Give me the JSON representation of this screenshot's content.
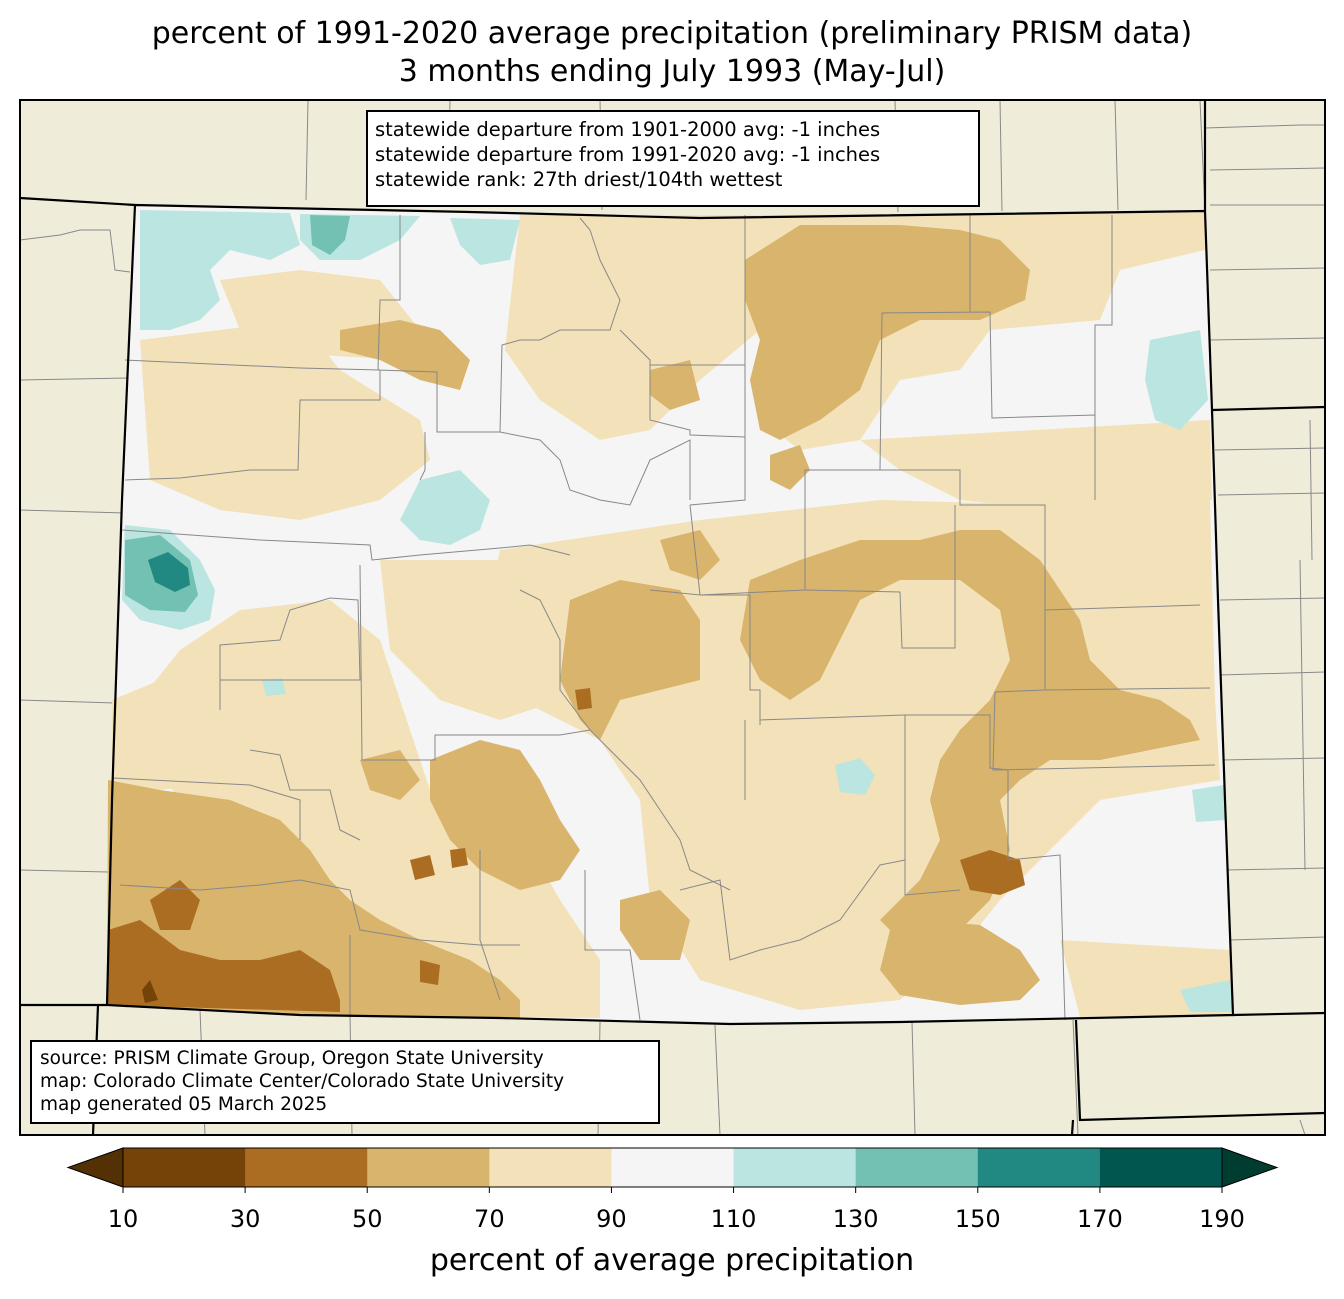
{
  "title": {
    "line1": "percent of 1991-2020 average precipitation (preliminary PRISM data)",
    "line2": "3 months ending July 1993 (May-Jul)"
  },
  "stats": {
    "line1": "statewide departure from 1901-2000 avg: -1 inches",
    "line2": "statewide departure from 1991-2020 avg: -1 inches",
    "line3": "statewide rank: 27th driest/104th wettest"
  },
  "source": {
    "line1": "source: PRISM Climate Group, Oregon State University",
    "line2": "map: Colorado Climate Center/Colorado State University",
    "line3": "map generated 05 March 2025"
  },
  "colorbar": {
    "label": "percent of average precipitation",
    "ticks": [
      "10",
      "30",
      "50",
      "70",
      "90",
      "110",
      "130",
      "150",
      "170",
      "190"
    ],
    "under_color": "#543005",
    "over_color": "#003c30",
    "bins": [
      {
        "range": "10-30",
        "color": "#754308"
      },
      {
        "range": "30-50",
        "color": "#ab6d22"
      },
      {
        "range": "50-70",
        "color": "#d8b46c"
      },
      {
        "range": "70-90",
        "color": "#f3e2b9"
      },
      {
        "range": "90-110",
        "color": "#f4f5f4"
      },
      {
        "range": "110-130",
        "color": "#bbe5e0"
      },
      {
        "range": "130-150",
        "color": "#72c1b3"
      },
      {
        "range": "150-170",
        "color": "#228982"
      },
      {
        "range": "170-190",
        "color": "#01574f"
      }
    ]
  },
  "map_colors": {
    "background": "#efedda",
    "state_border": "#000000",
    "county_border": "#888888"
  }
}
